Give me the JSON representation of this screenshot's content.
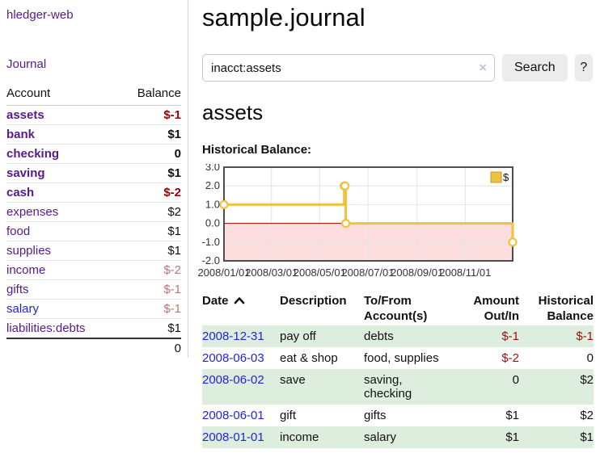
{
  "colors": {
    "link_purple": "#551a8b",
    "link_blue": "#2323dd",
    "negative_red": "#990000",
    "negative_faded": "#bd7575",
    "row_green": "#deeede",
    "chart_gold": "#edc240",
    "chart_negative_fill": "#fcdede",
    "chart_zero_line": "#9b0000"
  },
  "sidebar": {
    "brand": "hledger-web",
    "journal_link": "Journal",
    "accounts_header": {
      "account": "Account",
      "balance": "Balance"
    },
    "accounts": [
      {
        "name": "assets",
        "indent": 1,
        "bold": true,
        "link": "purple",
        "balance": "$-1",
        "balance_style": "neg"
      },
      {
        "name": "bank",
        "indent": 2,
        "bold": true,
        "link": "purple",
        "balance": "$1",
        "balance_style": "pos"
      },
      {
        "name": "checking",
        "indent": 3,
        "bold": true,
        "link": "purple",
        "balance": "0",
        "balance_style": "pos"
      },
      {
        "name": "saving",
        "indent": 3,
        "bold": true,
        "link": "purple",
        "balance": "$1",
        "balance_style": "pos"
      },
      {
        "name": "cash",
        "indent": 2,
        "bold": true,
        "link": "purple",
        "balance": "$-2",
        "balance_style": "neg"
      },
      {
        "name": "expenses",
        "indent": 1,
        "bold": false,
        "link": "purple",
        "balance": "$2",
        "balance_style": "pos"
      },
      {
        "name": "food",
        "indent": 2,
        "bold": false,
        "link": "purple",
        "balance": "$1",
        "balance_style": "pos"
      },
      {
        "name": "supplies",
        "indent": 2,
        "bold": false,
        "link": "purple",
        "balance": "$1",
        "balance_style": "pos"
      },
      {
        "name": "income",
        "indent": 1,
        "bold": false,
        "link": "purple",
        "balance": "$-2",
        "balance_style": "negfade"
      },
      {
        "name": "gifts",
        "indent": 2,
        "bold": false,
        "link": "purple",
        "balance": "$-1",
        "balance_style": "negfade"
      },
      {
        "name": "salary",
        "indent": 2,
        "bold": false,
        "link": "blue",
        "balance": "$-1",
        "balance_style": "negfade"
      },
      {
        "name": "liabilities:debts",
        "indent": 1,
        "bold": false,
        "link": "purple",
        "balance": "$1",
        "balance_style": "pos"
      }
    ],
    "total": "0"
  },
  "header": {
    "title": "sample.journal"
  },
  "search": {
    "value": "inacct:assets",
    "clear_icon": "×",
    "button_label": "Search",
    "help_label": "?"
  },
  "main": {
    "account_title": "assets",
    "chart_label": "Historical Balance:"
  },
  "chart_data": {
    "type": "line",
    "step": true,
    "series": [
      {
        "name": "$",
        "color": "#edc240",
        "points": [
          [
            "2008-01-01",
            1
          ],
          [
            "2008-06-01",
            2
          ],
          [
            "2008-06-02",
            2
          ],
          [
            "2008-06-03",
            0
          ],
          [
            "2008-12-31",
            -1
          ]
        ]
      }
    ],
    "xlim": [
      "2008-01-01",
      "2008-12-31"
    ],
    "ylim": [
      -2,
      3
    ],
    "x_ticks": [
      "2008/01/01",
      "2008/03/01",
      "2008/05/01",
      "2008/07/01",
      "2008/09/01",
      "2008/11/01"
    ],
    "y_ticks": [
      "3.0",
      "2.0",
      "1.0",
      "0.0",
      "-1.0",
      "-2.0"
    ],
    "grid": true,
    "legend_position": "top-right",
    "negative_region_color": "#fcdede",
    "zero_line_color": "#9b0000"
  },
  "register": {
    "sort": "ascending",
    "headers": {
      "date": "Date",
      "description": "Description",
      "accounts": "To/From Account(s)",
      "amount": "Amount Out/In",
      "balance": "Historical Balance"
    },
    "rows": [
      {
        "date": "2008-12-31",
        "description": "pay off",
        "accounts": "debts",
        "amount": "$-1",
        "amount_neg": true,
        "balance": "$-1",
        "balance_neg": true
      },
      {
        "date": "2008-06-03",
        "description": "eat & shop",
        "accounts": "food, supplies",
        "amount": "$-2",
        "amount_neg": true,
        "balance": "0",
        "balance_neg": false
      },
      {
        "date": "2008-06-02",
        "description": "save",
        "accounts": "saving, checking",
        "amount": "0",
        "amount_neg": false,
        "balance": "$2",
        "balance_neg": false
      },
      {
        "date": "2008-06-01",
        "description": "gift",
        "accounts": "gifts",
        "amount": "$1",
        "amount_neg": false,
        "balance": "$2",
        "balance_neg": false
      },
      {
        "date": "2008-01-01",
        "description": "income",
        "accounts": "salary",
        "amount": "$1",
        "amount_neg": false,
        "balance": "$1",
        "balance_neg": false
      }
    ]
  }
}
